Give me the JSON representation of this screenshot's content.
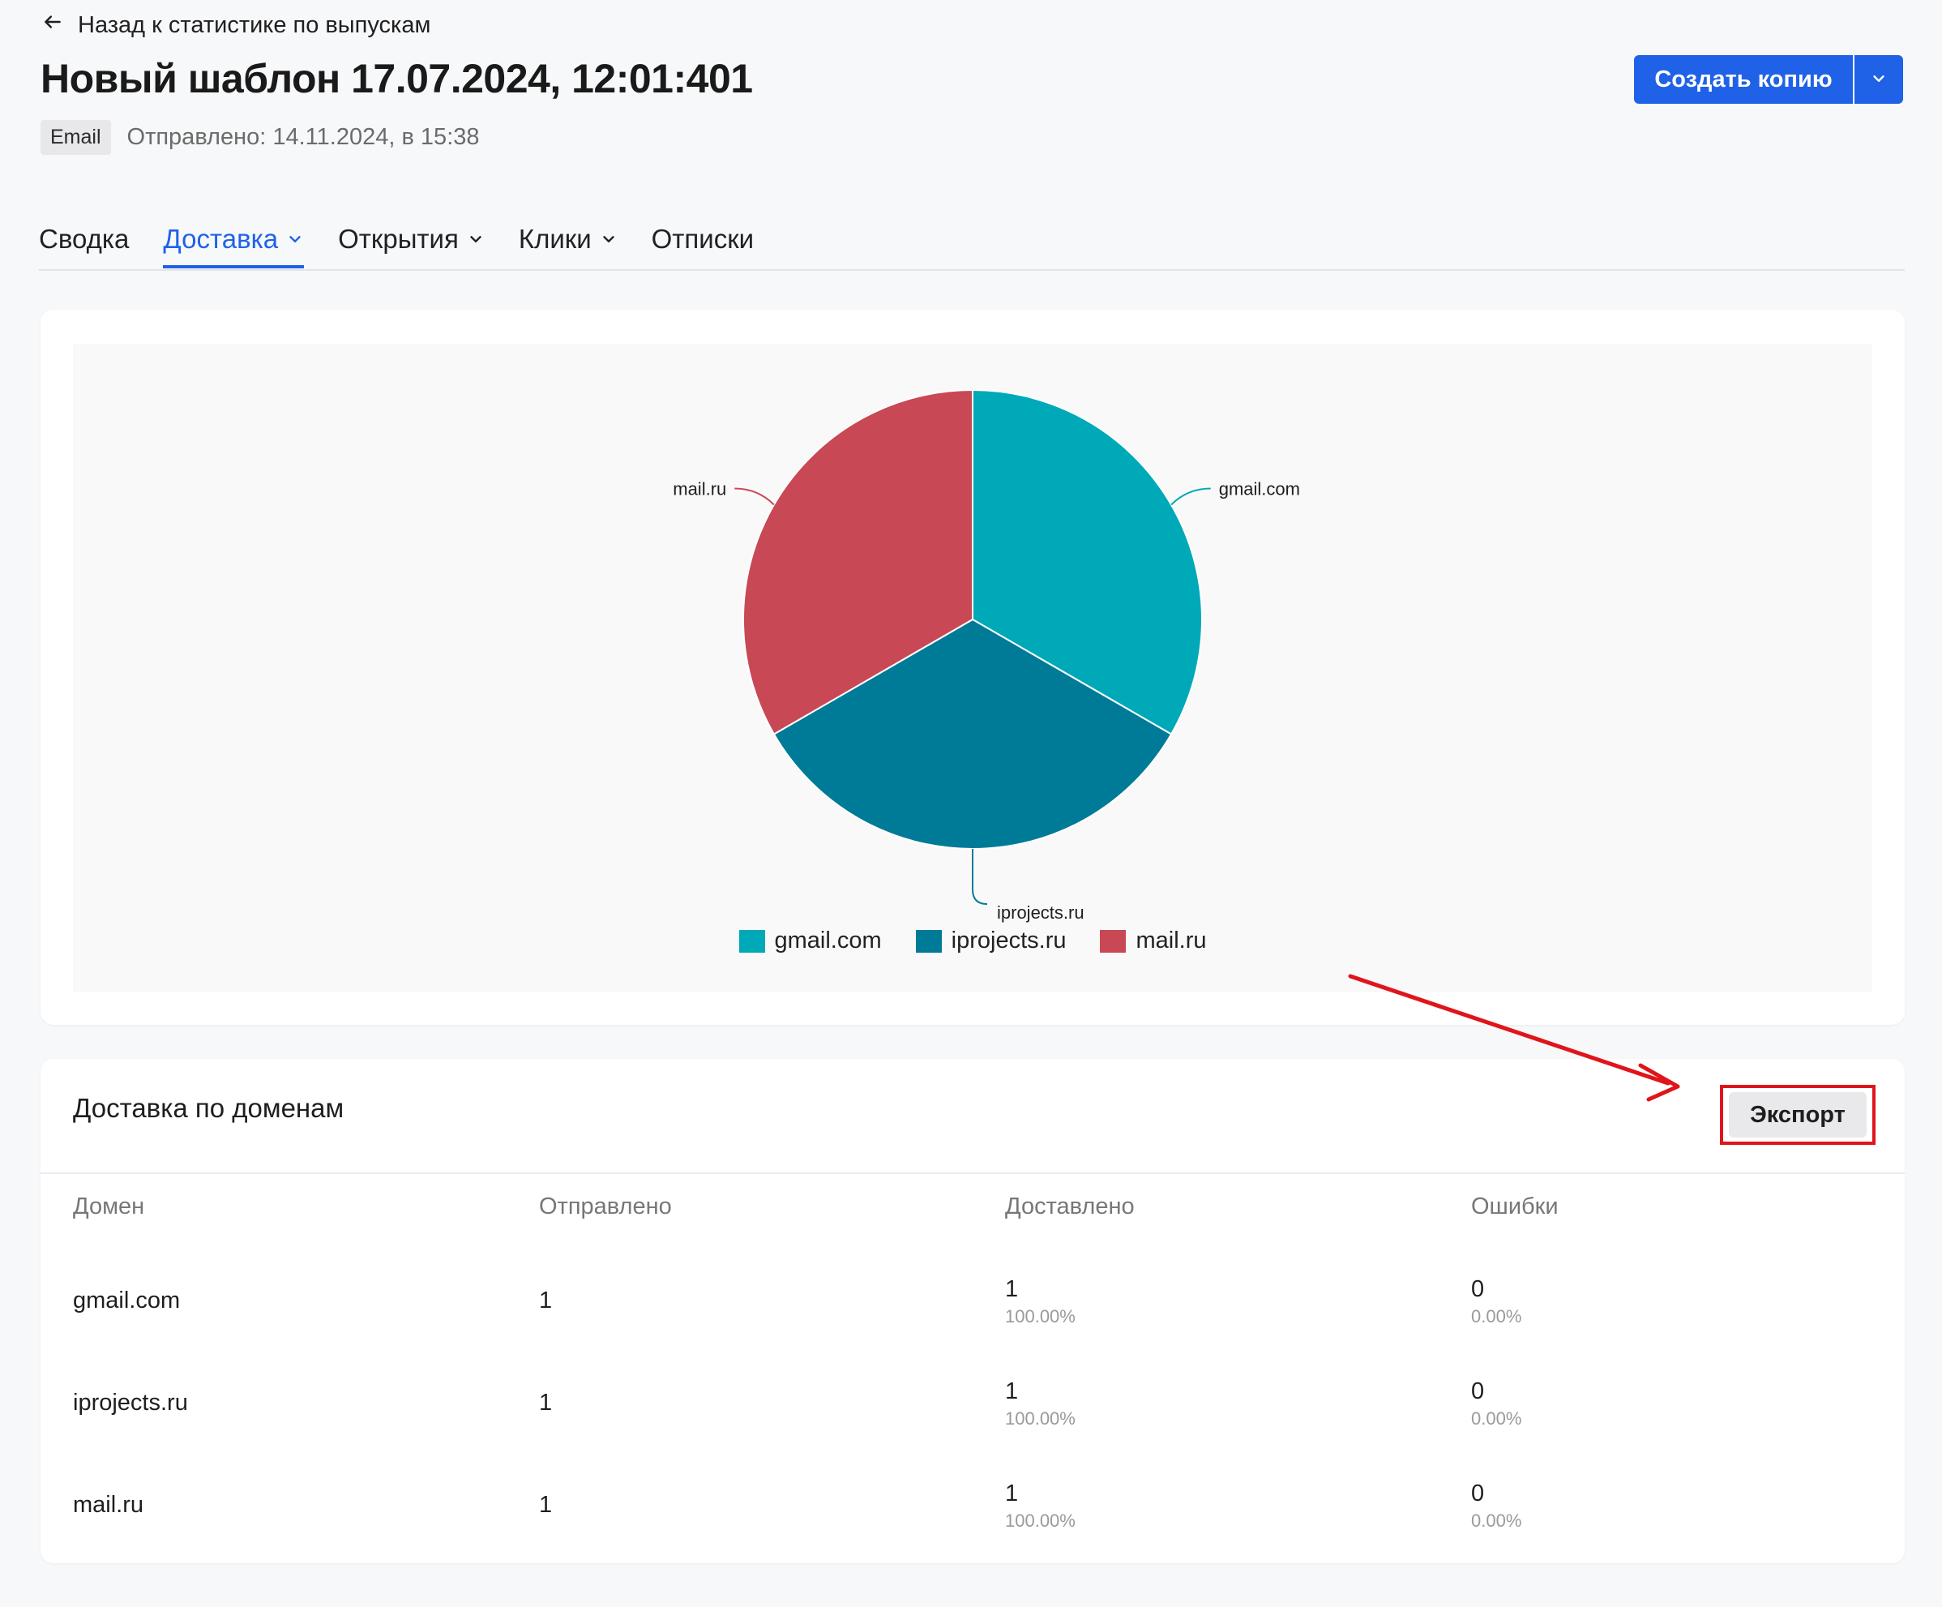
{
  "header": {
    "back_label": "Назад к статистике по выпускам",
    "title": "Новый шаблон 17.07.2024, 12:01:401",
    "channel_badge": "Email",
    "sent_info": "Отправлено: 14.11.2024, в 15:38",
    "copy_button_label": "Создать копию"
  },
  "tabs": [
    {
      "label": "Сводка",
      "active": false,
      "has_dropdown": false
    },
    {
      "label": "Доставка",
      "active": true,
      "has_dropdown": true
    },
    {
      "label": "Открытия",
      "active": false,
      "has_dropdown": true
    },
    {
      "label": "Клики",
      "active": false,
      "has_dropdown": true
    },
    {
      "label": "Отписки",
      "active": false,
      "has_dropdown": false
    }
  ],
  "chart_data": {
    "type": "pie",
    "categories": [
      "gmail.com",
      "iprojects.ru",
      "mail.ru"
    ],
    "values": [
      1,
      1,
      1
    ],
    "colors": [
      "#00a9b7",
      "#007b97",
      "#c84855"
    ],
    "legend_position": "bottom"
  },
  "table": {
    "title": "Доставка по доменам",
    "export_label": "Экспорт",
    "columns": [
      "Домен",
      "Отправлено",
      "Доставлено",
      "Ошибки"
    ],
    "rows": [
      {
        "domain": "gmail.com",
        "sent": "1",
        "delivered": "1",
        "delivered_pct": "100.00%",
        "errors": "0",
        "errors_pct": "0.00%"
      },
      {
        "domain": "iprojects.ru",
        "sent": "1",
        "delivered": "1",
        "delivered_pct": "100.00%",
        "errors": "0",
        "errors_pct": "0.00%"
      },
      {
        "domain": "mail.ru",
        "sent": "1",
        "delivered": "1",
        "delivered_pct": "100.00%",
        "errors": "0",
        "errors_pct": "0.00%"
      }
    ]
  },
  "colors": {
    "accent": "#1f62e8",
    "highlight": "#e0151b"
  }
}
